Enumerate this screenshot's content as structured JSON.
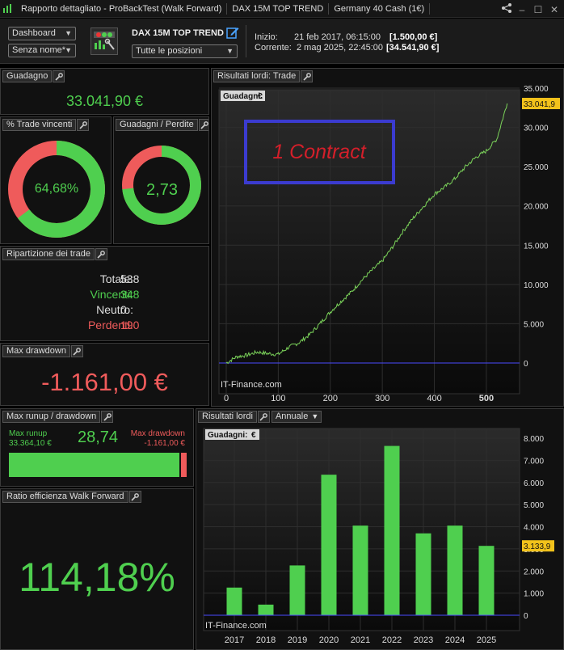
{
  "titlebar": {
    "app_title": "Rapporto dettagliato - ProBackTest (Walk Forward)",
    "strategy": "DAX 15M TOP TREND",
    "instrument": "Germany 40 Cash (1€)"
  },
  "toolbar": {
    "dashboard_select": "Dashboard",
    "name_select": "Senza nome*",
    "strategy_name": "DAX 15M TOP TREND",
    "positions_select": "Tutte le posizioni",
    "start_label": "Inizio:",
    "start_date": "21 feb 2017, 06:15:00",
    "start_value": "[1.500,00 €]",
    "current_label": "Corrente:",
    "current_date": "2 mag 2025, 22:45:00",
    "current_value": "[34.541,90 €]"
  },
  "gain": {
    "title": "Guadagno",
    "value": "33.041,90 €"
  },
  "win_trades": {
    "title": "% Trade vincenti",
    "value": "64,68%",
    "fraction": 0.6468
  },
  "gain_loss": {
    "title": "Guadagni / Perdite",
    "value": "2,73",
    "fraction": 0.732
  },
  "breakdown": {
    "title": "Ripartizione dei trade",
    "total_label": "Totale:",
    "total": "538",
    "winners_label": "Vincenti:",
    "winners": "348",
    "neutral_label": "Neutro:",
    "neutral": "0",
    "losers_label": "Perdenti:",
    "losers": "190"
  },
  "max_drawdown": {
    "title": "Max drawdown",
    "value": "-1.161,00 €"
  },
  "runup": {
    "title": "Max runup / drawdown",
    "runup_label": "Max runup",
    "runup_value": "33.364,10 €",
    "ratio": "28,74",
    "dd_label": "Max drawdown",
    "dd_value": "-1.161,00 €",
    "runup_fraction": 0.966
  },
  "efficiency": {
    "title": "Ratio efficienza Walk Forward",
    "value": "114,18%"
  },
  "equity_chart": {
    "panel_title": "Risultati lordi: Trade",
    "legend": "Guadagni:",
    "legend_unit": "€",
    "last_value_label": "33.041,9",
    "annotation": "1 Contract",
    "watermark": "IT-Finance.com",
    "x_ticks": [
      "0",
      "100",
      "200",
      "300",
      "400",
      "500"
    ],
    "y_ticks": [
      "0",
      "5.000",
      "10.000",
      "15.000",
      "20.000",
      "25.000",
      "30.000",
      "35.000"
    ]
  },
  "annual_chart": {
    "panel_title": "Risultati lordi",
    "period_select": "Annuale",
    "legend": "Guadagni:",
    "legend_unit": "€",
    "last_value_label": "3.133,9",
    "watermark": "IT-Finance.com",
    "y_ticks": [
      "0",
      "1.000",
      "2.000",
      "3.000",
      "4.000",
      "5.000",
      "6.000",
      "7.000",
      "8.000"
    ]
  },
  "chart_data": [
    {
      "type": "line",
      "title": "",
      "series": [
        {
          "x": [
            0,
            20,
            40,
            60,
            80,
            100,
            120,
            140,
            160,
            180,
            200,
            220,
            240,
            260,
            280,
            300,
            320,
            340,
            360,
            380,
            400,
            420,
            440,
            460,
            480,
            500,
            520,
            540
          ],
          "values": [
            0,
            800,
            1000,
            1400,
            1200,
            1100,
            2000,
            2600,
            3600,
            5000,
            6500,
            7800,
            9000,
            10500,
            11800,
            13000,
            14800,
            16800,
            18500,
            20000,
            21500,
            22400,
            23500,
            25000,
            26200,
            27000,
            28500,
            33041.9
          ]
        }
      ],
      "xlim": [
        0,
        540
      ],
      "ylim": [
        0,
        35000
      ],
      "grid": true,
      "legend": "top-left"
    },
    {
      "type": "bar",
      "title": "",
      "categories": [
        "2017",
        "2018",
        "2019",
        "2020",
        "2021",
        "2022",
        "2023",
        "2024",
        "2025"
      ],
      "values": [
        1250,
        480,
        2250,
        6350,
        4050,
        7650,
        3700,
        4050,
        3133.9
      ],
      "ylim": [
        0,
        8000
      ],
      "grid": true,
      "legend": "top-left"
    }
  ],
  "colors": {
    "positive": "#4fcf4f",
    "negative": "#ef5b5b",
    "annotation_box": "#3b3bd0",
    "annotation_text": "#d41f2a",
    "value_tag": "#f2c21b"
  }
}
